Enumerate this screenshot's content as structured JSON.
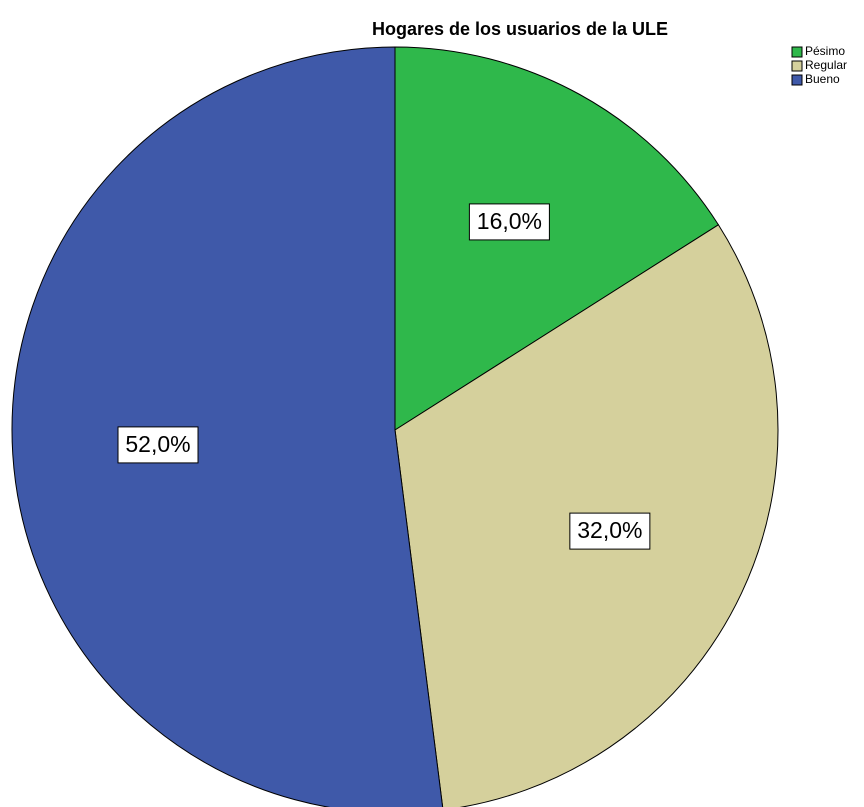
{
  "chart_data": {
    "type": "pie",
    "title": "Hogares de los usuarios de la ULE",
    "categories": [
      "Pésimo",
      "Regular",
      "Bueno"
    ],
    "values": [
      16.0,
      32.0,
      52.0
    ],
    "value_labels": [
      "16,0%",
      "32,0%",
      "52,0%"
    ],
    "colors": [
      "#2fb84b",
      "#d5d09c",
      "#3f59a9"
    ],
    "legend": "top-right"
  }
}
